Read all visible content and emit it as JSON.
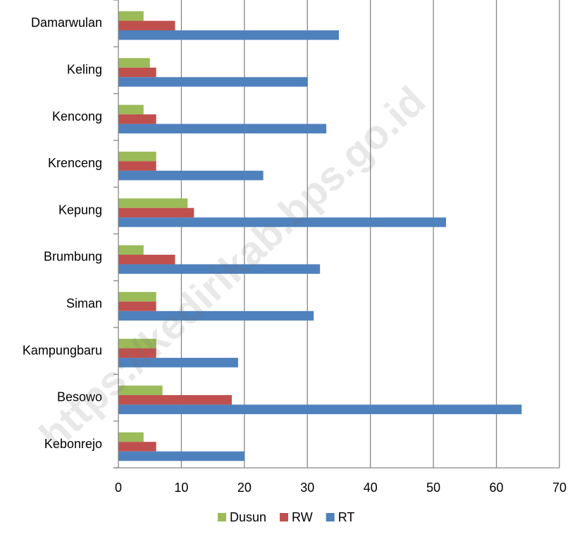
{
  "watermark": "https://kedirikab.bps.go.id",
  "colors": {
    "Dusun": "#9bbb59",
    "RW": "#c0504d",
    "RT": "#4f81bd",
    "grid": "#868686",
    "axis": "#868686"
  },
  "chart_data": {
    "type": "bar",
    "orientation": "horizontal",
    "title": "",
    "xlabel": "",
    "ylabel": "",
    "categories": [
      "Damarwulan",
      "Keling",
      "Kencong",
      "Krenceng",
      "Kepung",
      "Brumbung",
      "Siman",
      "Kampungbaru",
      "Besowo",
      "Kebonrejo"
    ],
    "series": [
      {
        "name": "Dusun",
        "values": [
          4,
          5,
          4,
          6,
          11,
          4,
          6,
          6,
          7,
          4
        ]
      },
      {
        "name": "RW",
        "values": [
          9,
          6,
          6,
          6,
          12,
          9,
          6,
          6,
          18,
          6
        ]
      },
      {
        "name": "RT",
        "values": [
          35,
          30,
          33,
          23,
          52,
          32,
          31,
          19,
          64,
          20
        ]
      }
    ],
    "xlim": [
      0,
      70
    ],
    "xticks": [
      0,
      10,
      20,
      30,
      40,
      50,
      60,
      70
    ],
    "grid": "vertical",
    "legend": "bottom-center"
  }
}
